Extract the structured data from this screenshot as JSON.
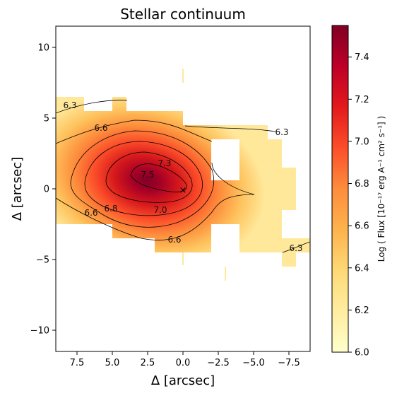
{
  "chart_data": {
    "type": "heatmap",
    "title": "Stellar continuum",
    "xlabel": "Δ [arcsec]",
    "ylabel": "Δ [arcsec]",
    "xlim": [
      9,
      -9
    ],
    "ylim": [
      -11.5,
      11.5
    ],
    "x_ticks": [
      7.5,
      5.0,
      2.5,
      0.0,
      -2.5,
      -5.0,
      -7.5
    ],
    "x_tick_labels": [
      "7.5",
      "5.0",
      "2.5",
      "0.0",
      "−2.5",
      "−5.0",
      "−7.5"
    ],
    "y_ticks": [
      10,
      5,
      0,
      -5,
      -10
    ],
    "y_tick_labels": [
      "10",
      "5",
      "0",
      "−5",
      "−10"
    ],
    "colorbar": {
      "label": "Log ( Flux [10⁻¹⁷ erg A⁻¹ cm² s⁻¹] )",
      "range": [
        6.0,
        7.55
      ],
      "ticks": [
        6.0,
        6.2,
        6.4,
        6.6,
        6.8,
        7.0,
        7.2,
        7.4
      ],
      "tick_labels": [
        "6.0",
        "6.2",
        "6.4",
        "6.6",
        "6.8",
        "7.0",
        "7.2",
        "7.4"
      ],
      "colormap": [
        "#ffffcc",
        "#ffeda0",
        "#fed976",
        "#feb24c",
        "#fd8d3c",
        "#fc4e2a",
        "#e31a1c",
        "#bd0026",
        "#800026"
      ]
    },
    "peak": {
      "x": 2.0,
      "y": 0.5,
      "value": 7.55
    },
    "center_marker": {
      "x": 0.0,
      "y": 0.0,
      "symbol": "×"
    },
    "contour_levels": [
      6.3,
      6.6,
      6.8,
      7.0,
      7.3,
      7.5
    ],
    "contour_labels": [
      {
        "text": "6.3",
        "x": 8.0,
        "y": 5.9
      },
      {
        "text": "6.3",
        "x": -7.0,
        "y": 4.0
      },
      {
        "text": "6.3",
        "x": -8.0,
        "y": -4.2
      },
      {
        "text": "6.6",
        "x": 5.8,
        "y": 4.3
      },
      {
        "text": "6.6",
        "x": 6.5,
        "y": -1.7
      },
      {
        "text": "6.6",
        "x": 0.6,
        "y": -3.6
      },
      {
        "text": "6.8",
        "x": 5.1,
        "y": -1.4
      },
      {
        "text": "7.0",
        "x": 1.6,
        "y": -1.5
      },
      {
        "text": "7.3",
        "x": 1.3,
        "y": 1.8
      },
      {
        "text": "7.5",
        "x": 2.5,
        "y": 1.0
      }
    ]
  }
}
